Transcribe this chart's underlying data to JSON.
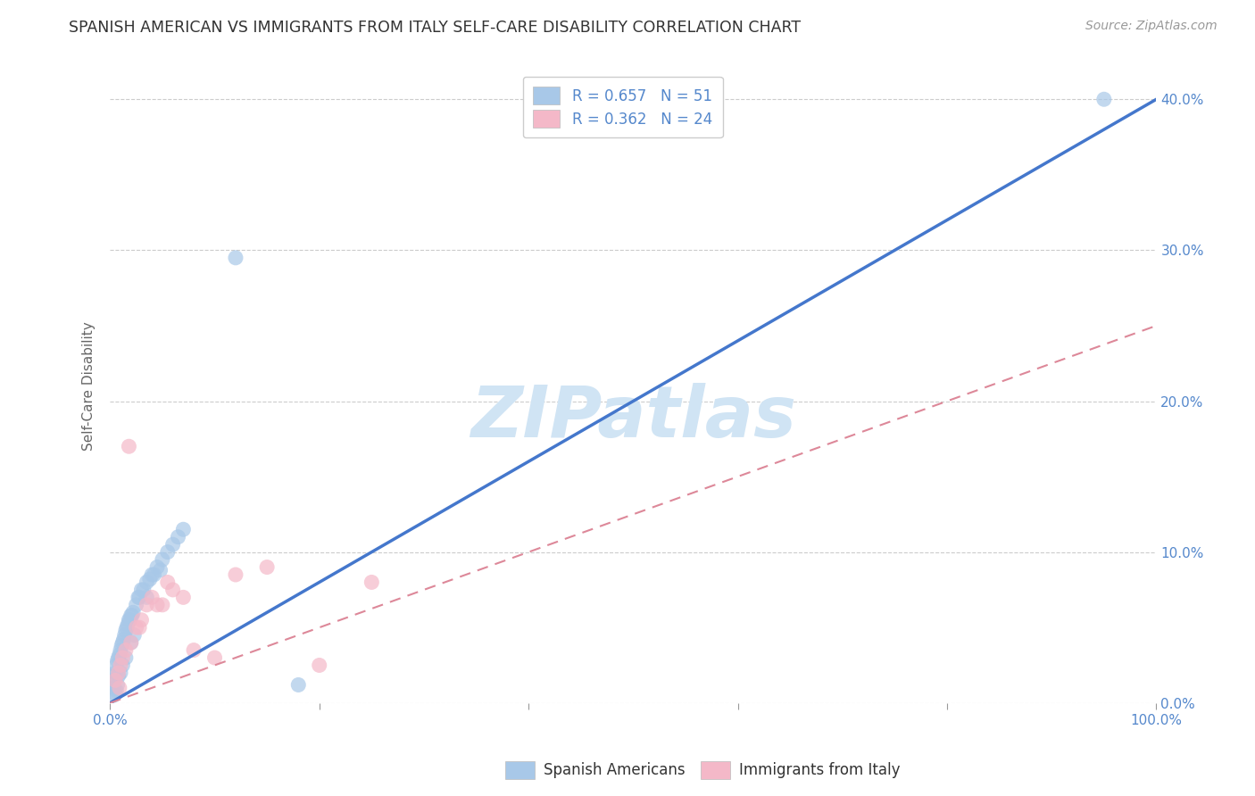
{
  "title": "SPANISH AMERICAN VS IMMIGRANTS FROM ITALY SELF-CARE DISABILITY CORRELATION CHART",
  "source": "Source: ZipAtlas.com",
  "ylabel": "Self-Care Disability",
  "blue_label": "Spanish Americans",
  "pink_label": "Immigrants from Italy",
  "blue_R": 0.657,
  "blue_N": 51,
  "pink_R": 0.362,
  "pink_N": 24,
  "blue_color": "#a8c8e8",
  "blue_line_color": "#4477cc",
  "pink_color": "#f4b8c8",
  "pink_line_color": "#dd8899",
  "watermark": "ZIPatlas",
  "watermark_color": "#d0e4f4",
  "xlim": [
    0,
    100
  ],
  "ylim": [
    0,
    42
  ],
  "blue_line_x": [
    0,
    100
  ],
  "blue_line_y": [
    0,
    40
  ],
  "pink_line_x": [
    0,
    100
  ],
  "pink_line_y": [
    0,
    25
  ],
  "blue_points_x": [
    0.3,
    0.5,
    0.4,
    0.6,
    0.8,
    0.7,
    1.0,
    0.9,
    1.2,
    1.1,
    1.4,
    1.3,
    1.6,
    1.5,
    1.8,
    1.7,
    2.0,
    1.9,
    2.2,
    2.1,
    2.5,
    2.8,
    3.0,
    3.5,
    4.0,
    3.8,
    4.5,
    5.0,
    5.5,
    6.0,
    6.5,
    7.0,
    4.2,
    3.2,
    2.7,
    0.4,
    0.6,
    0.3,
    0.5,
    0.7,
    0.8,
    1.0,
    1.2,
    1.5,
    2.0,
    2.3,
    12.0,
    3.5,
    4.8,
    95.0,
    18.0
  ],
  "blue_points_y": [
    1.5,
    2.0,
    1.8,
    2.5,
    3.0,
    2.8,
    3.5,
    3.2,
    4.0,
    3.8,
    4.5,
    4.2,
    5.0,
    4.8,
    5.5,
    5.2,
    5.8,
    5.5,
    6.0,
    5.8,
    6.5,
    7.0,
    7.5,
    8.0,
    8.5,
    8.2,
    9.0,
    9.5,
    10.0,
    10.5,
    11.0,
    11.5,
    8.5,
    7.5,
    7.0,
    1.0,
    0.8,
    0.5,
    0.6,
    1.2,
    1.8,
    2.0,
    2.5,
    3.0,
    4.0,
    4.5,
    29.5,
    7.0,
    8.8,
    40.0,
    1.2
  ],
  "pink_points_x": [
    0.5,
    0.8,
    1.0,
    1.5,
    1.2,
    2.0,
    2.5,
    3.0,
    2.8,
    3.5,
    4.0,
    4.5,
    1.8,
    0.9,
    5.0,
    6.0,
    7.0,
    5.5,
    8.0,
    10.0,
    15.0,
    12.0,
    20.0,
    25.0
  ],
  "pink_points_y": [
    1.5,
    2.0,
    2.5,
    3.5,
    3.0,
    4.0,
    5.0,
    5.5,
    5.0,
    6.5,
    7.0,
    6.5,
    17.0,
    1.0,
    6.5,
    7.5,
    7.0,
    8.0,
    3.5,
    3.0,
    9.0,
    8.5,
    2.5,
    8.0
  ]
}
